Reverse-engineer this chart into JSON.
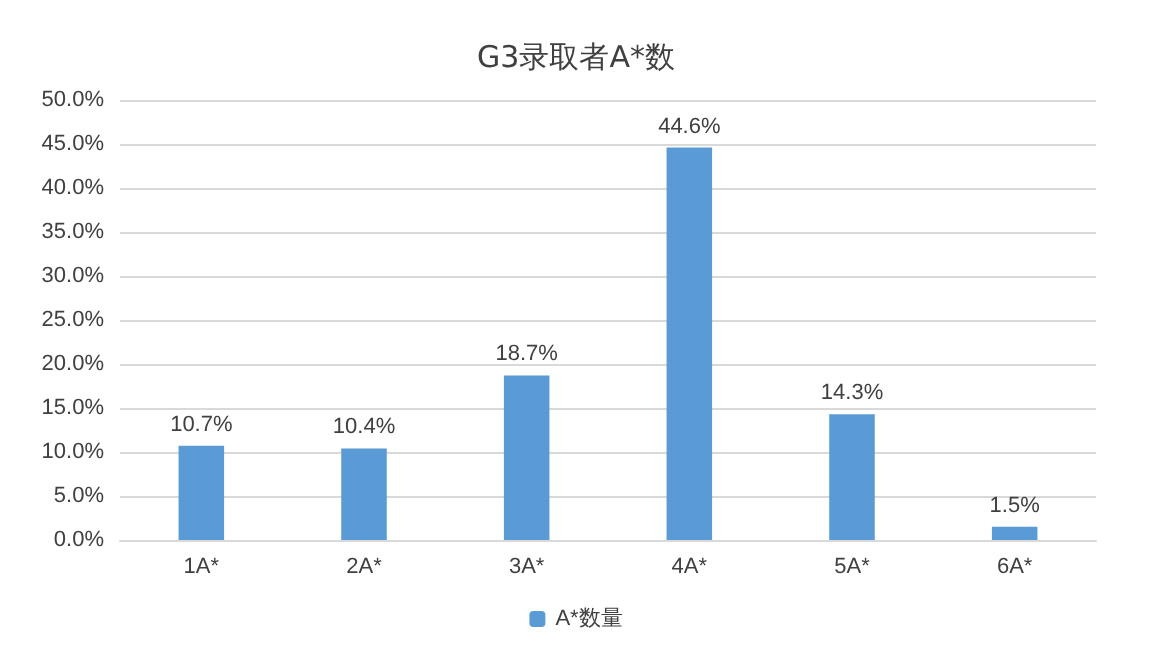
{
  "chart_data": {
    "type": "bar",
    "title": "G3录取者A*数",
    "categories": [
      "1A*",
      "2A*",
      "3A*",
      "4A*",
      "5A*",
      "6A*"
    ],
    "series": [
      {
        "name": "A*数量",
        "color": "#5b9bd5",
        "values": [
          10.7,
          10.4,
          18.7,
          44.6,
          14.3,
          1.5
        ],
        "value_labels": [
          "10.7%",
          "10.4%",
          "18.7%",
          "44.6%",
          "14.3%",
          "1.5%"
        ]
      }
    ],
    "ylim": [
      0,
      50
    ],
    "yticks": [
      {
        "value": 0,
        "label": "0.0%"
      },
      {
        "value": 5,
        "label": "5.0%"
      },
      {
        "value": 10,
        "label": "10.0%"
      },
      {
        "value": 15,
        "label": "15.0%"
      },
      {
        "value": 20,
        "label": "20.0%"
      },
      {
        "value": 25,
        "label": "25.0%"
      },
      {
        "value": 30,
        "label": "30.0%"
      },
      {
        "value": 35,
        "label": "35.0%"
      },
      {
        "value": 40,
        "label": "40.0%"
      },
      {
        "value": 45,
        "label": "45.0%"
      },
      {
        "value": 50,
        "label": "50.0%"
      }
    ],
    "grid": "y",
    "legend": "bottom"
  }
}
